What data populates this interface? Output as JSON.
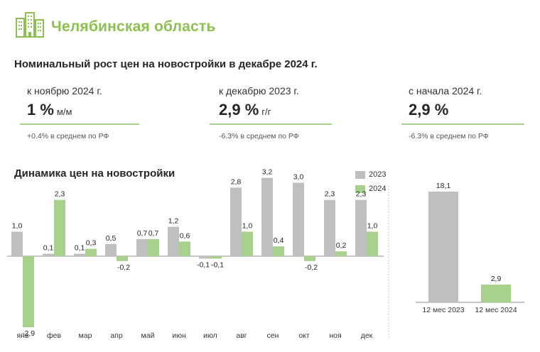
{
  "header": {
    "region": "Челябинская область"
  },
  "nominal_growth": {
    "title": "Номинальный рост цен на новостройки в декабре 2024 г.",
    "kpis": [
      {
        "label": "к ноябрю 2024 г.",
        "value": "1 %",
        "unit": "м/м",
        "note": "+0.4% в среднем по РФ"
      },
      {
        "label": "к декабрю 2023 г.",
        "value": "2,9 %",
        "unit": "г/г",
        "note": "-6.3% в среднем по РФ"
      },
      {
        "label": "с начала 2024 г.",
        "value": "2,9 %",
        "unit": "",
        "note": "-6.3% в среднем по РФ"
      }
    ]
  },
  "dynamics": {
    "title": "Динамика цен на новостройки"
  },
  "colors": {
    "series_2023": "#bfbfbf",
    "series_2024": "#a9d18e",
    "accent": "#8cc152"
  },
  "chart_data": [
    {
      "type": "bar",
      "title": "Динамика цен на новостройки",
      "categories": [
        "янв",
        "фев",
        "мар",
        "апр",
        "май",
        "июн",
        "июл",
        "авг",
        "сен",
        "окт",
        "ноя",
        "дек"
      ],
      "series": [
        {
          "name": "2023",
          "values": [
            1.0,
            0.1,
            0.1,
            0.5,
            0.7,
            1.2,
            -0.1,
            2.8,
            3.2,
            3.0,
            2.3,
            2.3
          ],
          "labels": [
            "1,0",
            "0,1",
            "0,1",
            "0,5",
            "0,7",
            "1,2",
            "-0,1",
            "2,8",
            "3,2",
            "3,0",
            "2,3",
            "2,3"
          ]
        },
        {
          "name": "2024",
          "values": [
            -2.9,
            2.3,
            0.3,
            -0.2,
            0.7,
            0.6,
            -0.1,
            1.0,
            0.4,
            -0.2,
            0.2,
            1.0
          ],
          "labels": [
            "-2,9",
            "2,3",
            "0,3",
            "-0,2",
            "0,7",
            "0,6",
            "-0,1",
            "1,0",
            "0,4",
            "-0,2",
            "0,2",
            "1,0"
          ]
        }
      ],
      "ylim": [
        -3.2,
        3.7
      ]
    },
    {
      "type": "bar",
      "categories": [
        "12 мес 2023",
        "12 мес 2024"
      ],
      "values": [
        18.1,
        2.9
      ],
      "labels": [
        "18,1",
        "2,9"
      ],
      "ylim": [
        0,
        19
      ]
    }
  ]
}
